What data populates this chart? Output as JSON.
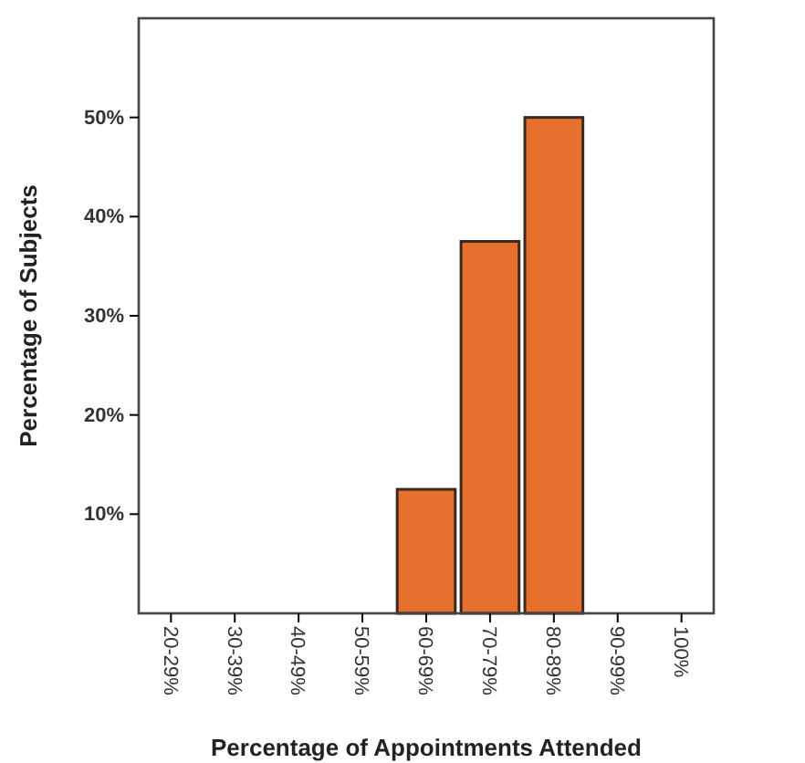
{
  "chart_data": {
    "type": "bar",
    "xlabel": "Percentage of Appointments Attended",
    "ylabel": "Percentage of Subjects",
    "categories": [
      "20-29%",
      "30-39%",
      "40-49%",
      "50-59%",
      "60-69%",
      "70-79%",
      "80-89%",
      "90-99%",
      "100%"
    ],
    "values": [
      0,
      0,
      0,
      0,
      12.5,
      37.5,
      50,
      0,
      0
    ],
    "color": "#e8702e",
    "ylim": [
      0,
      60
    ],
    "yticks": [
      {
        "value": 10,
        "label": "10%"
      },
      {
        "value": 20,
        "label": "20%"
      },
      {
        "value": 30,
        "label": "30%"
      },
      {
        "value": 40,
        "label": "40%"
      },
      {
        "value": 50,
        "label": "50%"
      }
    ],
    "grid": false
  }
}
